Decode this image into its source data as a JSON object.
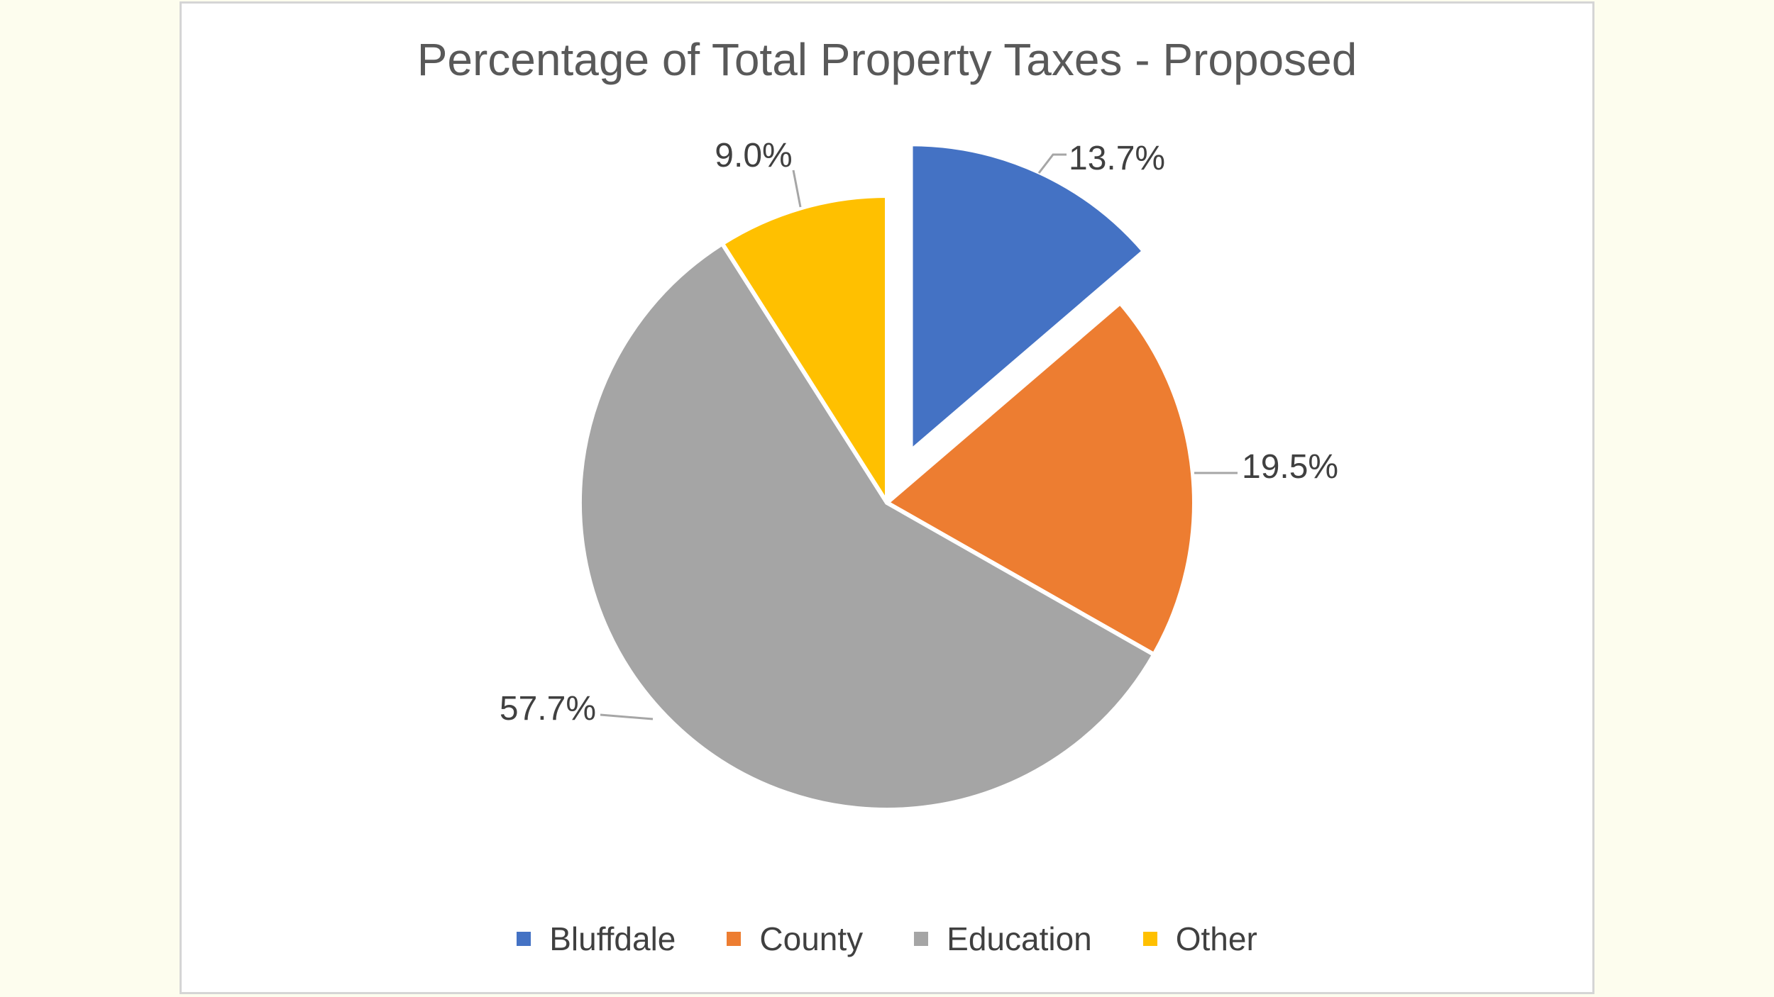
{
  "page": {
    "background_color": "#FDFDEE",
    "panel_background": "#FFFFFF",
    "panel_border_color": "#D5D5D5"
  },
  "chart_data": {
    "type": "pie",
    "title": "Percentage of Total Property Taxes - Proposed",
    "categories": [
      "Bluffdale",
      "County",
      "Education",
      "Other"
    ],
    "values": [
      13.7,
      19.5,
      57.7,
      9.0
    ],
    "data_labels": [
      "13.7%",
      "19.5%",
      "57.7%",
      "9.0%"
    ],
    "colors": [
      "#4472C4",
      "#ED7D31",
      "#A5A5A5",
      "#FFC000"
    ],
    "start_angle_deg": 0,
    "direction": "clockwise",
    "exploded_slice": "Bluffdale",
    "explode_offset_ratio": 0.185,
    "slice_border_color": "#FFFFFF",
    "leader_line_color": "#A6A6A6",
    "title_color": "#595959",
    "label_color": "#404040",
    "legend_position": "bottom"
  }
}
